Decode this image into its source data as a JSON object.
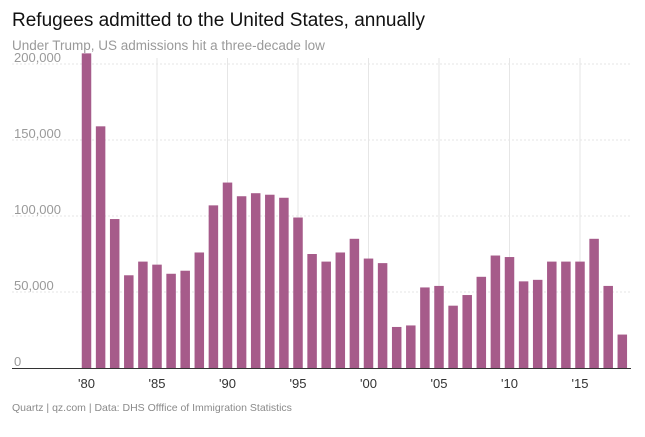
{
  "header": {
    "title": "Refugees admitted to the United States, annually",
    "subtitle": "Under Trump, US admissions hit a three-decade low"
  },
  "footer": {
    "source": "Quartz | qz.com | Data: DHS Offfice of Immigration Statistics"
  },
  "colors": {
    "bar": "#a65b8a",
    "grid": "#e6e6e6",
    "axis": "#333333"
  },
  "chart_data": {
    "type": "bar",
    "title": "Refugees admitted to the United States, annually",
    "subtitle": "Under Trump, US admissions hit a three-decade low",
    "xlabel": "",
    "ylabel": "",
    "ylim": [
      0,
      200000
    ],
    "grid": true,
    "yticks": [
      0,
      50000,
      100000,
      150000,
      200000
    ],
    "ytick_labels": [
      "0",
      "50,000",
      "100,000",
      "150,000",
      "200,000"
    ],
    "xticks": [
      1980,
      1985,
      1990,
      1995,
      2000,
      2005,
      2010,
      2015
    ],
    "xtick_labels": [
      "'80",
      "'85",
      "'90",
      "'95",
      "'00",
      "'05",
      "'10",
      "'15"
    ],
    "categories": [
      1980,
      1981,
      1982,
      1983,
      1984,
      1985,
      1986,
      1987,
      1988,
      1989,
      1990,
      1991,
      1992,
      1993,
      1994,
      1995,
      1996,
      1997,
      1998,
      1999,
      2000,
      2001,
      2002,
      2003,
      2004,
      2005,
      2006,
      2007,
      2008,
      2009,
      2010,
      2011,
      2012,
      2013,
      2014,
      2015,
      2016,
      2017,
      2018
    ],
    "values": [
      207000,
      159000,
      98000,
      61000,
      70000,
      68000,
      62000,
      64000,
      76000,
      107000,
      122000,
      113000,
      115000,
      114000,
      112000,
      99000,
      75000,
      70000,
      76000,
      85000,
      72000,
      69000,
      27000,
      28000,
      53000,
      54000,
      41000,
      48000,
      60000,
      74000,
      73000,
      57000,
      58000,
      70000,
      70000,
      70000,
      85000,
      54000,
      22000
    ]
  }
}
